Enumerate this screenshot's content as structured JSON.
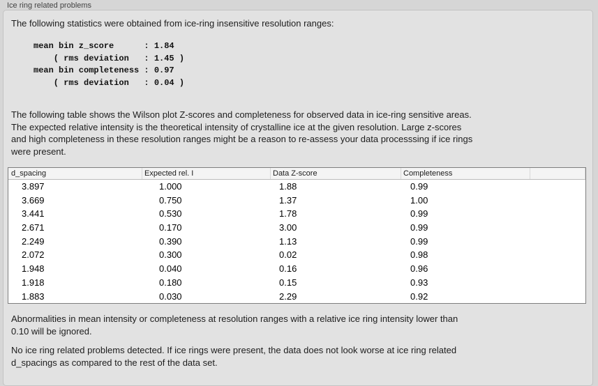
{
  "panel": {
    "title": "Ice ring related problems",
    "intro": "The following statistics were obtained from ice-ring insensitive resolution ranges:",
    "stats_lines": [
      "mean bin z_score      : 1.84",
      "    ( rms deviation   : 1.45 )",
      "mean bin completeness : 0.97",
      "    ( rms deviation   : 0.04 )"
    ],
    "stats": {
      "mean_bin_z_score": "1.84",
      "z_score_rms_deviation": "1.45",
      "mean_bin_completeness": "0.97",
      "completeness_rms_deviation": "0.04"
    },
    "table_description_lines": [
      "The following table shows the Wilson plot Z-scores and completeness for observed data in ice-ring sensitive areas.",
      "The expected relative intensity is the theoretical intensity of crystalline ice at the given resolution. Large z-scores",
      "and high completeness in these resolution ranges might be a reason to re-assess your data processsing if ice rings",
      "were present."
    ],
    "table": {
      "columns": [
        "d_spacing",
        "Expected rel. I",
        "Data Z-score",
        "Completeness"
      ],
      "rows": [
        [
          "3.897",
          "1.000",
          "1.88",
          "0.99"
        ],
        [
          "3.669",
          "0.750",
          "1.37",
          "1.00"
        ],
        [
          "3.441",
          "0.530",
          "1.78",
          "0.99"
        ],
        [
          "2.671",
          "0.170",
          "3.00",
          "0.99"
        ],
        [
          "2.249",
          "0.390",
          "1.13",
          "0.99"
        ],
        [
          "2.072",
          "0.300",
          "0.02",
          "0.98"
        ],
        [
          "1.948",
          "0.040",
          "0.16",
          "0.96"
        ],
        [
          "1.918",
          "0.180",
          "0.15",
          "0.93"
        ],
        [
          "1.883",
          "0.030",
          "2.29",
          "0.92"
        ]
      ]
    },
    "note_lines": [
      "Abnormalities in mean intensity or completeness at resolution ranges with a relative ice ring intensity lower than",
      "0.10 will be ignored."
    ],
    "conclusion_lines": [
      "No ice ring related problems detected. If ice rings were present, the data does not look worse at ice ring related",
      "d_spacings as compared to the rest of the data set."
    ]
  },
  "colors": {
    "page_bg": "#d6d6d6",
    "panel_bg": "#e2e2e2",
    "panel_border": "#c3c3c3",
    "table_border": "#7e7e7e",
    "table_header_bg": "#f4f4f4",
    "table_body_bg": "#ffffff",
    "text": "#1d1d1d"
  }
}
